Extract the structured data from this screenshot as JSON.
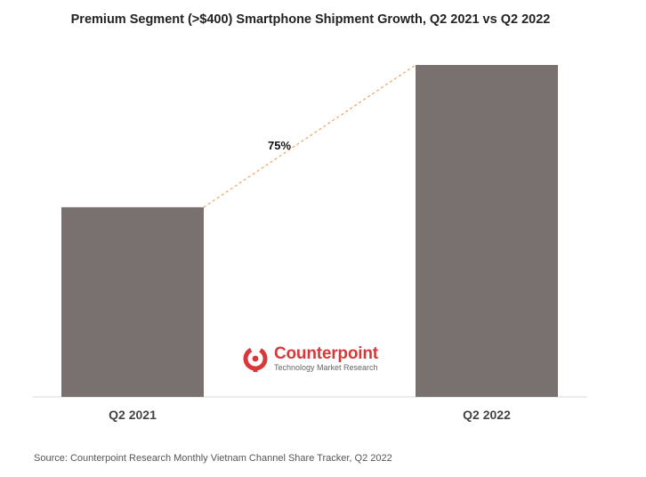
{
  "chart_data": {
    "type": "bar",
    "title": "Premium Segment (>$400) Smartphone Shipment Growth, Q2 2021 vs Q2 2022",
    "categories": [
      "Q2 2021",
      "Q2 2022"
    ],
    "values": [
      100,
      175
    ],
    "ylim": [
      0,
      175
    ],
    "xlabel": "",
    "ylabel": "",
    "growth_label": "75%",
    "bar_color": "#787170",
    "connector_color": "#f0a060",
    "grid": false
  },
  "logo": {
    "name": "Counterpoint",
    "tagline": "Technology Market Research",
    "color": "#d9383a"
  },
  "source": "Source: Counterpoint Research Monthly Vietnam Channel Share Tracker, Q2 2022"
}
